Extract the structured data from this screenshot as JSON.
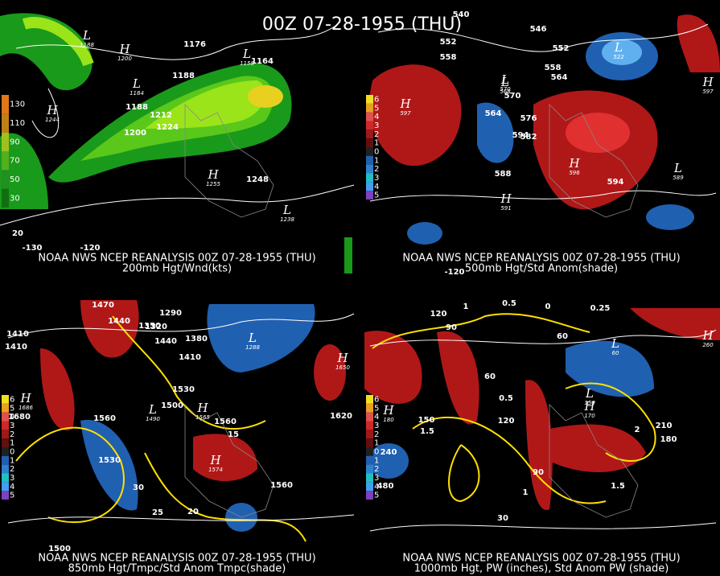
{
  "title": "00Z 07-28-1955 (THU)",
  "panels": [
    {
      "source": "NOAA NWS NCEP REANALYSIS 00Z 07-28-1955 (THU)",
      "field": "200mb Hgt/Wnd(kts)",
      "legend": [
        "130",
        "110",
        "90",
        "70",
        "50",
        "30"
      ],
      "labels": [
        "1176",
        "1164",
        "1188",
        "1188",
        "1200",
        "1212",
        "1224",
        "1248",
        "-130",
        "-120",
        "20"
      ],
      "markers": [
        {
          "symbol": "H",
          "value": "1244"
        },
        {
          "symbol": "L",
          "value": "1188"
        },
        {
          "symbol": "H",
          "value": "1200"
        },
        {
          "symbol": "L",
          "value": "1158"
        },
        {
          "symbol": "L",
          "value": "1184"
        },
        {
          "symbol": "H",
          "value": "1255"
        },
        {
          "symbol": "L",
          "value": "1238"
        }
      ]
    },
    {
      "source": "NOAA NWS NCEP REANALYSIS 00Z 07-28-1955 (THU)",
      "field": "500mb Hgt/Std Anom(shade)",
      "legend": [
        "6",
        "5",
        "4",
        "3",
        "2",
        "1",
        "0",
        "1",
        "2",
        "3",
        "4",
        "5"
      ],
      "labels": [
        "540",
        "546",
        "552",
        "552",
        "558",
        "558",
        "564",
        "564",
        "570",
        "576",
        "582",
        "588",
        "594",
        "594",
        "-120"
      ],
      "markers": [
        {
          "symbol": "H",
          "value": "597"
        },
        {
          "symbol": "L",
          "value": "522"
        },
        {
          "symbol": "H",
          "value": "597"
        },
        {
          "symbol": "L",
          "value": "568"
        },
        {
          "symbol": "L",
          "value": "570"
        },
        {
          "symbol": "H",
          "value": "596"
        },
        {
          "symbol": "H",
          "value": "591"
        },
        {
          "symbol": "L",
          "value": "589"
        }
      ]
    },
    {
      "source": "NOAA NWS NCEP REANALYSIS 00Z 07-28-1955 (THU)",
      "field": "850mb Hgt/Tmpc/Std Anom Tmpc(shade)",
      "legend": [
        "6",
        "5",
        "4",
        "3",
        "2",
        "1",
        "0",
        "1",
        "2",
        "3",
        "4",
        "5"
      ],
      "labels": [
        "1470",
        "1440",
        "1410",
        "1410",
        "1290",
        "1320",
        "1350",
        "1380",
        "1410",
        "1440",
        "1530",
        "1500",
        "1560",
        "1560",
        "1500",
        "1620",
        "1680",
        "1560",
        "1530",
        "30",
        "25",
        "20",
        "15"
      ],
      "markers": [
        {
          "symbol": "H",
          "value": "1686"
        },
        {
          "symbol": "L",
          "value": "1288"
        },
        {
          "symbol": "H",
          "value": "1574"
        },
        {
          "symbol": "L",
          "value": "1490"
        },
        {
          "symbol": "H",
          "value": "1565"
        },
        {
          "symbol": "H",
          "value": "1650"
        }
      ]
    },
    {
      "source": "NOAA NWS NCEP REANALYSIS 00Z 07-28-1955 (THU)",
      "field": "1000mb Hgt, PW (inches), Std Anom PW (shade)",
      "legend": [
        "6",
        "5",
        "4",
        "3",
        "2",
        "1",
        "0",
        "1",
        "2",
        "3",
        "4",
        "5"
      ],
      "labels": [
        "120",
        "90",
        "60",
        "0",
        "0.5",
        "0.25",
        "1",
        "1.5",
        "2",
        "210",
        "180",
        "240",
        "480",
        "150",
        "120",
        "90",
        "30",
        "60",
        "0.5",
        "1",
        "1.5"
      ],
      "markers": [
        {
          "symbol": "L",
          "value": "60"
        },
        {
          "symbol": "H",
          "value": "260"
        },
        {
          "symbol": "H",
          "value": "180"
        },
        {
          "symbol": "L",
          "value": "150"
        },
        {
          "symbol": "H",
          "value": "170"
        }
      ]
    }
  ]
}
